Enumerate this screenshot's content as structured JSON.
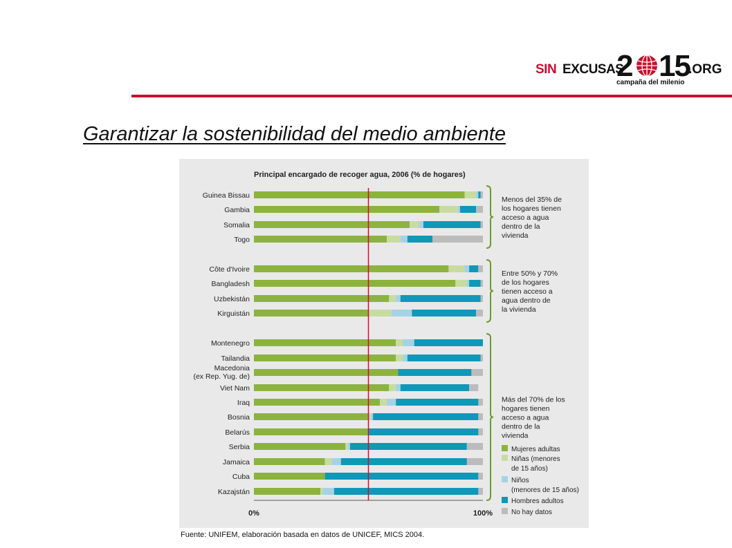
{
  "header": {
    "logo": {
      "sin": "SIN",
      "excusas": "EXCUSAS",
      "year_a": "2",
      "year_b": "15",
      "org": ".ORG",
      "tagline": "campaña del milenio"
    },
    "title": "Garantizar la sostenibilidad del medio ambiente"
  },
  "footer": {
    "source": "Fuente: UNIFEM, elaboración basada en datos de UNICEF, MICS 2004."
  },
  "colors": {
    "accent_red": "#c8102e",
    "mujeres": "#8db33f",
    "ninas": "#c9dca0",
    "ninos": "#a6d2e6",
    "hombres": "#0f98b8",
    "nodata": "#bcbcbc"
  },
  "chart_data": {
    "type": "bar",
    "stacked": true,
    "orientation": "horizontal",
    "title": "Principal encargado de recoger agua, 2006 (% de hogares)",
    "x_tick_labels": [
      "0%",
      "100%"
    ],
    "xlim": [
      0,
      100
    ],
    "reference_line": 50,
    "categories": [
      "Guinea Bissau",
      "Gambia",
      "Somalia",
      "Togo",
      "Côte d'Ivoire",
      "Bangladesh",
      "Uzbekistán",
      "Kirguistán",
      "Montenegro",
      "Tailandia",
      "Macedonia (ex Rep. Yug. de)",
      "Viet Nam",
      "Iraq",
      "Bosnia",
      "Belarús",
      "Serbia",
      "Jamaica",
      "Cuba",
      "Kazajstán"
    ],
    "category_lines": [
      [
        "Guinea Bissau"
      ],
      [
        "Gambia"
      ],
      [
        "Somalia"
      ],
      [
        "Togo"
      ],
      [
        "Côte d'Ivoire"
      ],
      [
        "Bangladesh"
      ],
      [
        "Uzbekistán"
      ],
      [
        "Kirguistán"
      ],
      [
        "Montenegro"
      ],
      [
        "Tailandia"
      ],
      [
        "Macedonia",
        "(ex Rep. Yug. de)"
      ],
      [
        "Viet Nam"
      ],
      [
        "Iraq"
      ],
      [
        "Bosnia"
      ],
      [
        "Belarús"
      ],
      [
        "Serbia"
      ],
      [
        "Jamaica"
      ],
      [
        "Cuba"
      ],
      [
        "Kazajstán"
      ]
    ],
    "groups": [
      {
        "start": 0,
        "end": 3,
        "label_lines": [
          "Menos del 35% de",
          "los hogares tienen",
          "acceso a agua",
          "dentro de la",
          "vivienda"
        ]
      },
      {
        "start": 4,
        "end": 7,
        "label_lines": [
          "Entre 50% y 70%",
          "de los hogares",
          "tienen acceso a",
          "agua dentro de",
          "la vivienda"
        ]
      },
      {
        "start": 8,
        "end": 18,
        "label_lines": [
          "Más del 70% de los",
          "hogares tienen",
          "acceso a agua",
          "dentro de la",
          "vivienda"
        ]
      }
    ],
    "series": [
      {
        "name": "Mujeres adultas",
        "values": [
          92,
          81,
          68,
          58,
          85,
          88,
          59,
          50,
          62,
          62,
          63,
          59,
          55,
          50,
          50,
          40,
          31,
          31,
          29
        ]
      },
      {
        "name": "Niñas (menores de 15 años)",
        "values": [
          5,
          8,
          4,
          6,
          7,
          5,
          3,
          10,
          3,
          3,
          0,
          3,
          3,
          1,
          0,
          1,
          3,
          0,
          1
        ]
      },
      {
        "name": "Niños (menores de 15 años)",
        "values": [
          1,
          1,
          2,
          3,
          2,
          1,
          2,
          9,
          5,
          2,
          0,
          2,
          4,
          1,
          0,
          1,
          4,
          0,
          5
        ]
      },
      {
        "name": "Hombres adultos",
        "values": [
          1,
          7,
          25,
          11,
          4,
          5,
          35,
          28,
          30,
          32,
          32,
          30,
          36,
          46,
          48,
          51,
          55,
          67,
          63
        ]
      },
      {
        "name": "No hay datos",
        "values": [
          1,
          3,
          1,
          22,
          2,
          1,
          1,
          3,
          0,
          1,
          5,
          4,
          2,
          2,
          2,
          7,
          7,
          2,
          2
        ]
      }
    ],
    "legend": {
      "position": "right",
      "entries": [
        {
          "series": 0,
          "lines": [
            "Mujeres adultas"
          ]
        },
        {
          "series": 1,
          "lines": [
            "Niñas (menores",
            "de 15 años)"
          ]
        },
        {
          "series": 2,
          "lines": [
            "Niños",
            "(menores de 15 años)"
          ]
        },
        {
          "series": 3,
          "lines": [
            "Hombres adultos"
          ]
        },
        {
          "series": 4,
          "lines": [
            "No hay datos"
          ]
        }
      ]
    }
  }
}
